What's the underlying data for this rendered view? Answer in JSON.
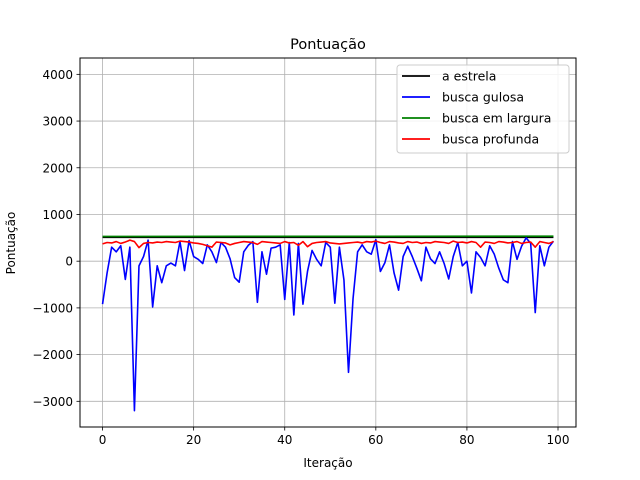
{
  "chart_data": {
    "type": "line",
    "title": "Pontuação",
    "xlabel": "Iteração",
    "ylabel": "Pontuação",
    "xlim": [
      -4.95,
      103.95
    ],
    "ylim": [
      -3550,
      4350
    ],
    "xticks": [
      0,
      20,
      40,
      60,
      80,
      100
    ],
    "yticks": [
      -3000,
      -2000,
      -1000,
      0,
      1000,
      2000,
      3000,
      4000
    ],
    "xtick_labels": [
      "0",
      "20",
      "40",
      "60",
      "80",
      "100"
    ],
    "ytick_labels": [
      "−3000",
      "−2000",
      "−1000",
      "0",
      "1000",
      "2000",
      "3000",
      "4000"
    ],
    "grid": true,
    "legend_position": "top-right",
    "series": [
      {
        "name": "a estrela",
        "color": "#000000",
        "x": [
          0,
          99
        ],
        "y": [
          510,
          510
        ]
      },
      {
        "name": "busca gulosa",
        "color": "#0000ff",
        "x": [
          0,
          1,
          2,
          3,
          4,
          5,
          6,
          7,
          8,
          9,
          10,
          11,
          12,
          13,
          14,
          15,
          16,
          17,
          18,
          19,
          20,
          21,
          22,
          23,
          24,
          25,
          26,
          27,
          28,
          29,
          30,
          31,
          32,
          33,
          34,
          35,
          36,
          37,
          38,
          39,
          40,
          41,
          42,
          43,
          44,
          45,
          46,
          47,
          48,
          49,
          50,
          51,
          52,
          53,
          54,
          55,
          56,
          57,
          58,
          59,
          60,
          61,
          62,
          63,
          64,
          65,
          66,
          67,
          68,
          69,
          70,
          71,
          72,
          73,
          74,
          75,
          76,
          77,
          78,
          79,
          80,
          81,
          82,
          83,
          84,
          85,
          86,
          87,
          88,
          89,
          90,
          91,
          92,
          93,
          94,
          95,
          96,
          97,
          98,
          99
        ],
        "y": [
          -920,
          -250,
          300,
          200,
          330,
          -390,
          300,
          -3200,
          -100,
          100,
          450,
          -980,
          -100,
          -460,
          -100,
          -40,
          -100,
          420,
          -200,
          440,
          100,
          40,
          -50,
          350,
          200,
          -30,
          400,
          300,
          50,
          -350,
          -450,
          200,
          340,
          420,
          -880,
          200,
          -280,
          280,
          300,
          350,
          -820,
          400,
          -1150,
          380,
          -920,
          -220,
          230,
          40,
          -100,
          400,
          300,
          -900,
          300,
          -400,
          -2380,
          -800,
          200,
          350,
          200,
          150,
          460,
          -220,
          -30,
          350,
          -250,
          -620,
          100,
          320,
          100,
          -150,
          -420,
          300,
          50,
          -50,
          200,
          -50,
          -380,
          100,
          400,
          -100,
          0,
          -680,
          200,
          80,
          -100,
          330,
          150,
          -150,
          -400,
          -460,
          420,
          40,
          320,
          500,
          380,
          -1100,
          330,
          -100,
          300,
          430
        ]
      },
      {
        "name": "busca em largura",
        "color": "#008000",
        "x": [
          0,
          99
        ],
        "y": [
          530,
          535
        ]
      },
      {
        "name": "busca profunda",
        "color": "#ff0000",
        "x": [
          0,
          1,
          2,
          3,
          4,
          5,
          6,
          7,
          8,
          9,
          10,
          11,
          12,
          13,
          14,
          15,
          16,
          17,
          18,
          19,
          20,
          21,
          22,
          23,
          24,
          25,
          26,
          27,
          28,
          29,
          30,
          31,
          32,
          33,
          34,
          35,
          36,
          37,
          38,
          39,
          40,
          41,
          42,
          43,
          44,
          45,
          46,
          47,
          48,
          49,
          50,
          51,
          52,
          53,
          54,
          55,
          56,
          57,
          58,
          59,
          60,
          61,
          62,
          63,
          64,
          65,
          66,
          67,
          68,
          69,
          70,
          71,
          72,
          73,
          74,
          75,
          76,
          77,
          78,
          79,
          80,
          81,
          82,
          83,
          84,
          85,
          86,
          87,
          88,
          89,
          90,
          91,
          92,
          93,
          94,
          95,
          96,
          97,
          98,
          99
        ],
        "y": [
          370,
          400,
          390,
          420,
          380,
          410,
          450,
          420,
          290,
          380,
          400,
          390,
          410,
          400,
          420,
          410,
          400,
          430,
          420,
          410,
          390,
          380,
          360,
          330,
          300,
          410,
          400,
          390,
          350,
          380,
          400,
          420,
          410,
          400,
          360,
          420,
          410,
          400,
          390,
          380,
          420,
          390,
          400,
          340,
          420,
          310,
          380,
          400,
          410,
          420,
          390,
          380,
          370,
          380,
          390,
          400,
          410,
          390,
          420,
          410,
          430,
          400,
          380,
          420,
          410,
          390,
          380,
          420,
          400,
          410,
          380,
          400,
          390,
          420,
          410,
          400,
          380,
          430,
          400,
          410,
          390,
          420,
          400,
          300,
          410,
          400,
          380,
          420,
          410,
          390,
          400,
          420,
          380,
          400,
          410,
          300,
          420,
          400,
          380,
          420
        ]
      }
    ]
  }
}
